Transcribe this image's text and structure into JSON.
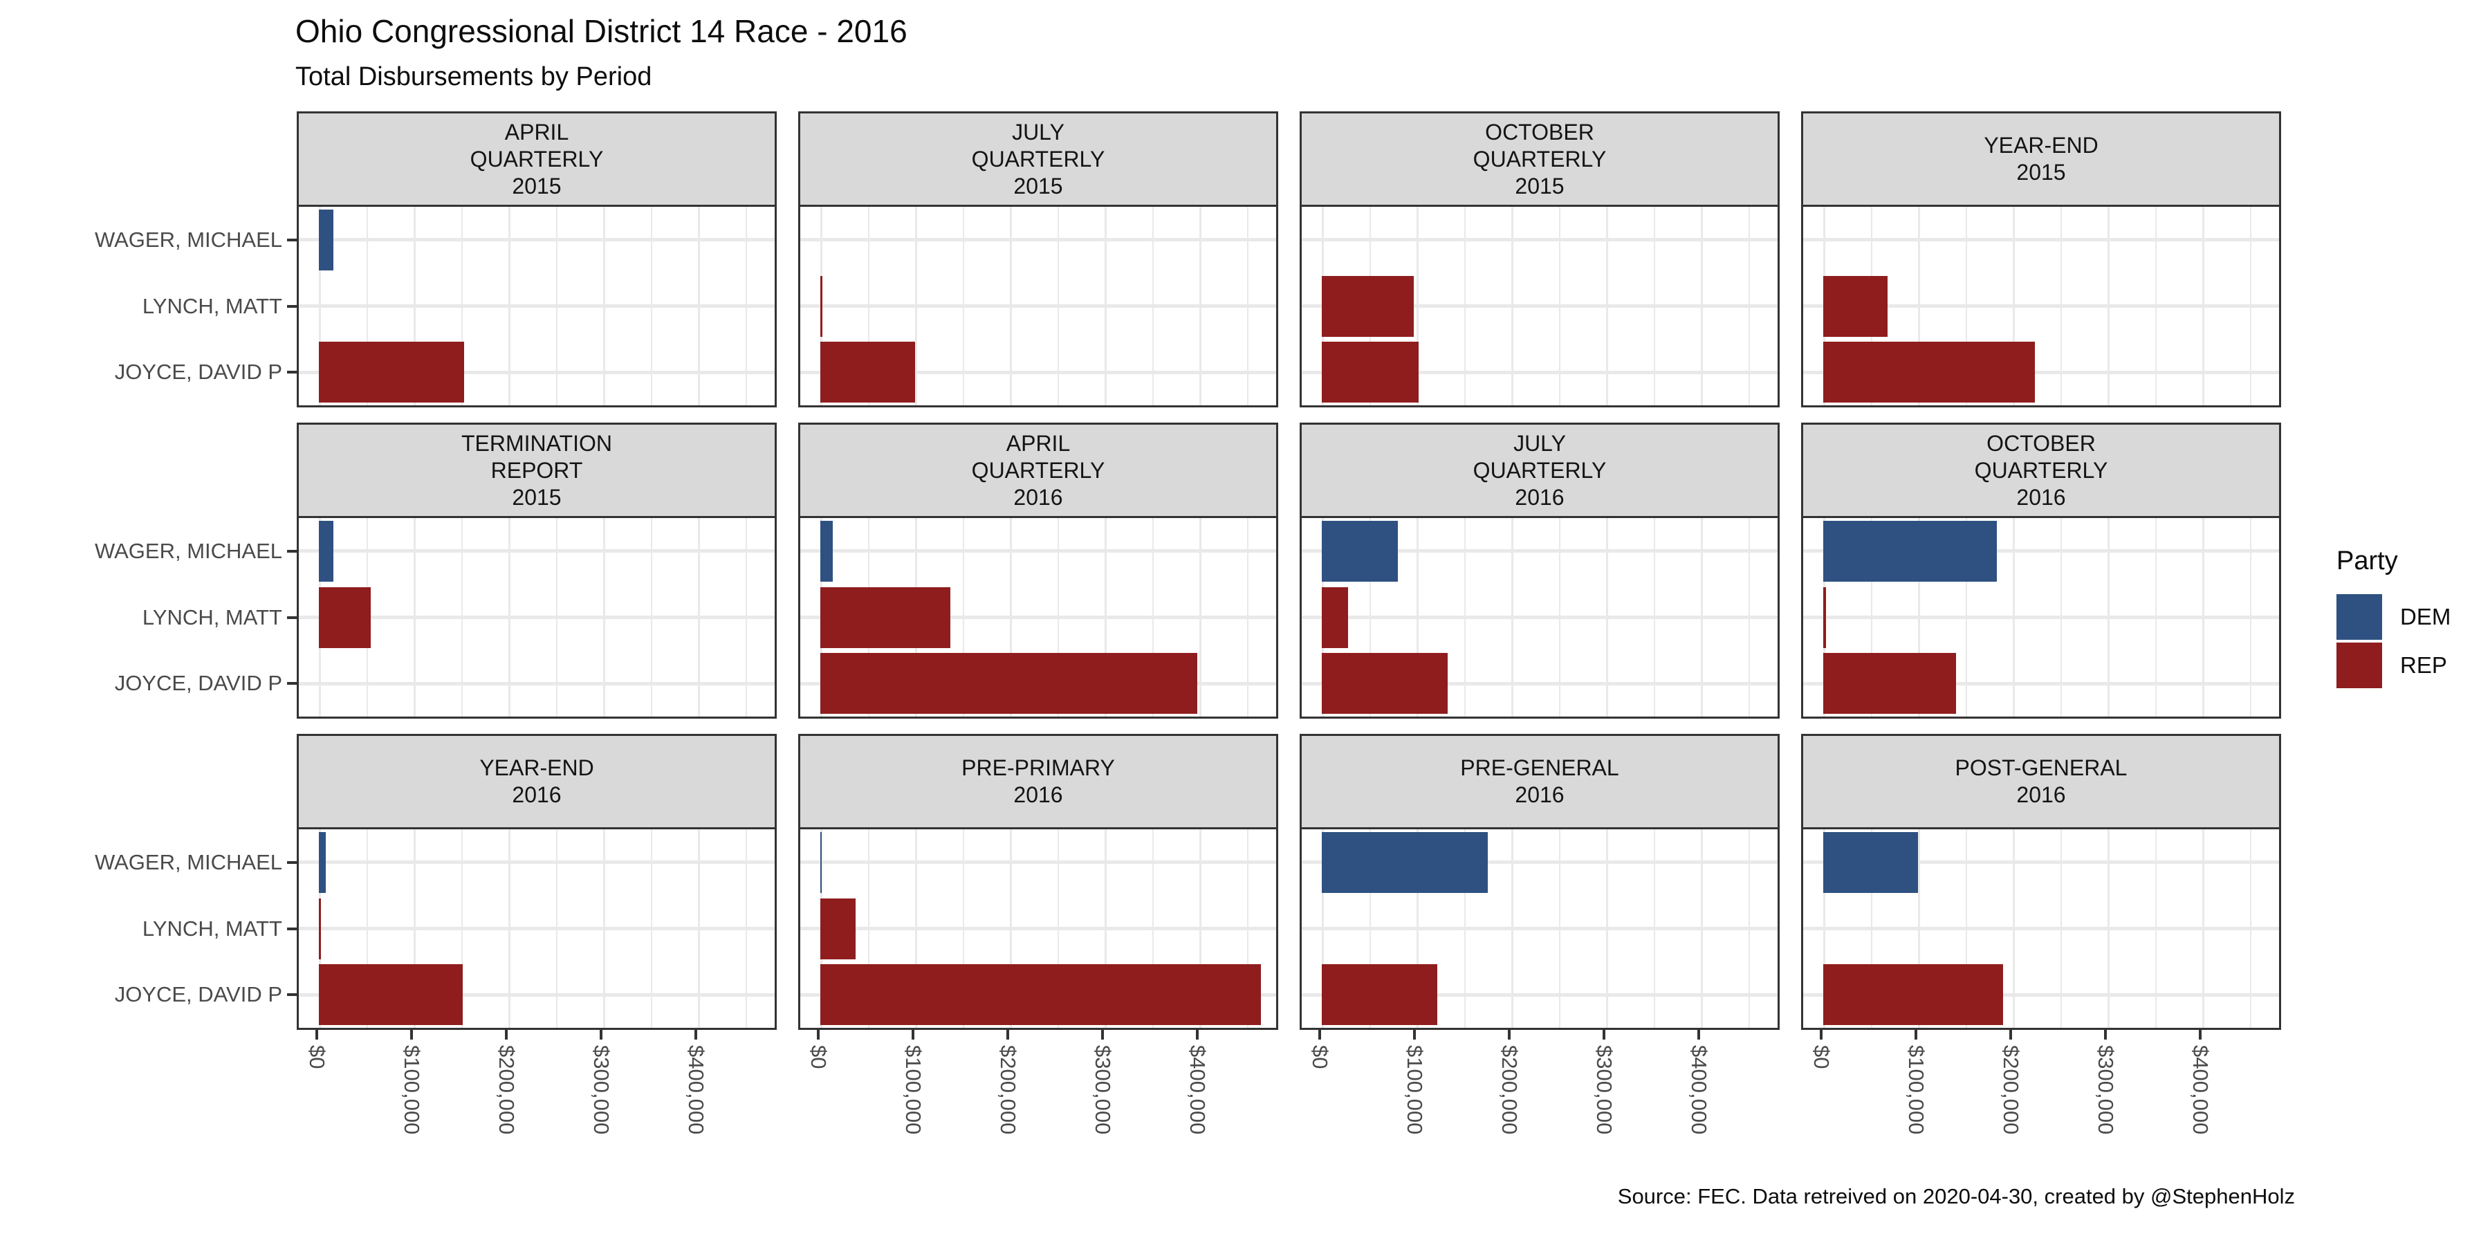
{
  "page": {
    "background": "#ffffff"
  },
  "header": {
    "title": "Ohio Congressional District 14 Race - 2016",
    "subtitle": "Total Disbursements by Period"
  },
  "caption": "Source: FEC. Data retreived on 2020-04-30, created by @StephenHolz",
  "legend": {
    "title": "Party",
    "entries": [
      {
        "label": "DEM",
        "color": "#2E5181"
      },
      {
        "label": "REP",
        "color": "#8F1D1D"
      }
    ]
  },
  "chart_data": {
    "type": "bar",
    "orientation": "horizontal",
    "title": "Ohio Congressional District 14 Race - 2016",
    "subtitle": "Total Disbursements by Period",
    "categories": [
      "WAGER, MICHAEL",
      "LYNCH, MATT",
      "JOYCE, DAVID P"
    ],
    "category_parties": [
      "DEM",
      "REP",
      "REP"
    ],
    "party_colors": {
      "DEM": "#2E5181",
      "REP": "#8F1D1D"
    },
    "x_ticks": [
      {
        "label": "$0",
        "value": 0
      },
      {
        "label": "$100,000",
        "value": 100000
      },
      {
        "label": "$200,000",
        "value": 200000
      },
      {
        "label": "$300,000",
        "value": 300000
      },
      {
        "label": "$400,000",
        "value": 400000
      }
    ],
    "xlim": [
      0,
      485000
    ],
    "grid_minor_step": 50000,
    "grid": true,
    "legend_position": "right",
    "facets": [
      {
        "label_lines": [
          "APRIL",
          "QUARTERLY",
          "2015"
        ],
        "values": [
          15000,
          0,
          153000
        ]
      },
      {
        "label_lines": [
          "JULY",
          "QUARTERLY",
          "2015"
        ],
        "values": [
          0,
          2000,
          100000
        ]
      },
      {
        "label_lines": [
          "OCTOBER",
          "QUARTERLY",
          "2015"
        ],
        "values": [
          0,
          97000,
          102000
        ]
      },
      {
        "label_lines": [
          "YEAR-END",
          "2015"
        ],
        "values": [
          0,
          68000,
          223000
        ]
      },
      {
        "label_lines": [
          "TERMINATION",
          "REPORT",
          "2015"
        ],
        "values": [
          15000,
          55000,
          0
        ]
      },
      {
        "label_lines": [
          "APRIL",
          "QUARTERLY",
          "2016"
        ],
        "values": [
          13000,
          137000,
          398000
        ]
      },
      {
        "label_lines": [
          "JULY",
          "QUARTERLY",
          "2016"
        ],
        "values": [
          80000,
          28000,
          133000
        ]
      },
      {
        "label_lines": [
          "OCTOBER",
          "QUARTERLY",
          "2016"
        ],
        "values": [
          183000,
          3000,
          140000
        ]
      },
      {
        "label_lines": [
          "YEAR-END",
          "2016"
        ],
        "values": [
          7000,
          2000,
          152000
        ]
      },
      {
        "label_lines": [
          "PRE-PRIMARY",
          "2016"
        ],
        "values": [
          1000,
          37000,
          465000
        ]
      },
      {
        "label_lines": [
          "PRE-GENERAL",
          "2016"
        ],
        "values": [
          175000,
          0,
          122000
        ]
      },
      {
        "label_lines": [
          "POST-GENERAL",
          "2016"
        ],
        "values": [
          100000,
          0,
          190000
        ]
      }
    ]
  }
}
